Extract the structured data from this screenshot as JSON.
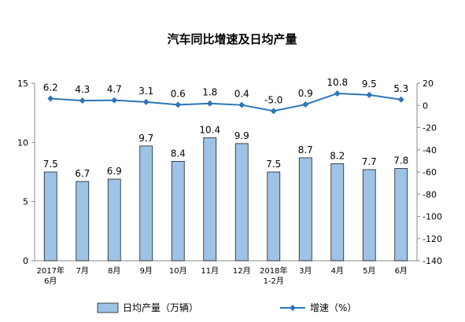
{
  "chart_data": {
    "type": "bar",
    "title": "汽车同比增速及日均产量",
    "categories": [
      [
        "2017年",
        "6月"
      ],
      [
        "7月"
      ],
      [
        "8月"
      ],
      [
        "9月"
      ],
      [
        "10月"
      ],
      [
        "11月"
      ],
      [
        "12月"
      ],
      [
        "2018年",
        "1-2月"
      ],
      [
        "3月"
      ],
      [
        "4月"
      ],
      [
        "5月"
      ],
      [
        "6月"
      ]
    ],
    "series": [
      {
        "name": "日均产量（万辆）",
        "type": "bar",
        "axis": "left",
        "color": "#9DC3E6",
        "values": [
          7.5,
          6.7,
          6.9,
          9.7,
          8.4,
          10.4,
          9.9,
          7.5,
          8.7,
          8.2,
          7.7,
          7.8
        ],
        "labels": [
          "7.5",
          "6.7",
          "6.9",
          "9.7",
          "8.4",
          "10.4",
          "9.9",
          "7.5",
          "8.7",
          "8.2",
          "7.7",
          "7.8"
        ]
      },
      {
        "name": "增速（%）",
        "type": "line",
        "axis": "right",
        "color": "#2E75B6",
        "values": [
          6.2,
          4.3,
          4.7,
          3.1,
          0.6,
          1.8,
          0.4,
          -5.0,
          0.9,
          10.8,
          9.5,
          5.3
        ],
        "labels": [
          "6.2",
          "4.3",
          "4.7",
          "3.1",
          "0.6",
          "1.8",
          "0.4",
          "-5.0",
          "0.9",
          "10.8",
          "9.5",
          "5.3"
        ]
      }
    ],
    "y_left": {
      "min": 0,
      "max": 15,
      "ticks": [
        "0",
        "5",
        "10",
        "15"
      ],
      "tick_values": [
        0,
        5,
        10,
        15
      ]
    },
    "y_right": {
      "min": -140,
      "max": 20,
      "ticks": [
        "20",
        "0",
        "-20",
        "-40",
        "-60",
        "-80",
        "-100",
        "-120",
        "-140"
      ],
      "tick_values": [
        20,
        0,
        -20,
        -40,
        -60,
        -80,
        -100,
        -120,
        -140
      ]
    },
    "legend_position": "bottom",
    "grid": false
  }
}
